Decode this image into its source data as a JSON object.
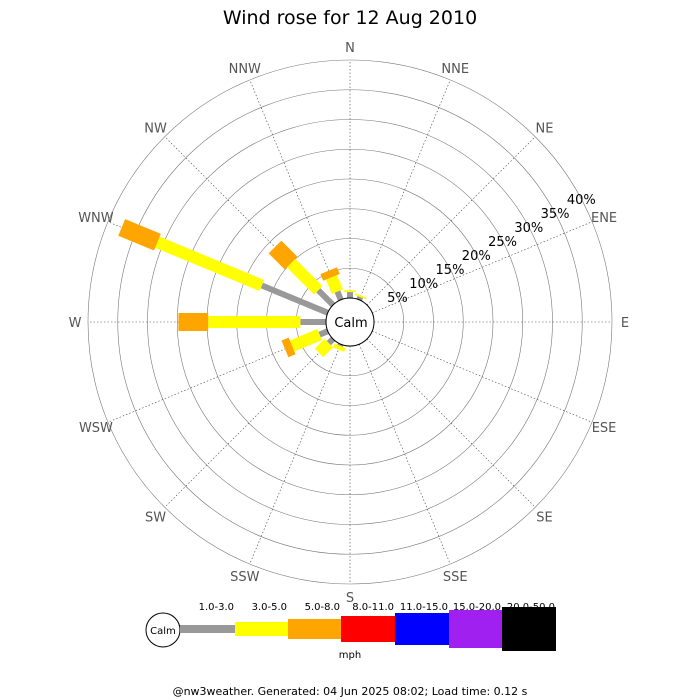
{
  "chart_data": {
    "type": "wind-rose",
    "title": "Wind rose for 12 Aug 2010",
    "directions": [
      "N",
      "NNE",
      "NE",
      "ENE",
      "E",
      "ESE",
      "SE",
      "SSE",
      "S",
      "SSW",
      "SW",
      "WSW",
      "W",
      "WNW",
      "NW",
      "NNW"
    ],
    "ring_labels": [
      "5%",
      "10%",
      "15%",
      "20%",
      "25%",
      "30%",
      "35%",
      "40%"
    ],
    "ring_values": [
      5,
      10,
      15,
      20,
      25,
      30,
      35,
      40
    ],
    "radial_max": 40,
    "calm_label": "Calm",
    "unit": "mph",
    "speed_bins": [
      {
        "label": "1.0-3.0",
        "color": "#999999"
      },
      {
        "label": "3.0-5.0",
        "color": "#ffff00"
      },
      {
        "label": "5.0-8.0",
        "color": "#ffa500"
      },
      {
        "label": "8.0-11.0",
        "color": "#ff0000"
      },
      {
        "label": "11.0-15.0",
        "color": "#0000ff"
      },
      {
        "label": "15.0-20.0",
        "color": "#a020f0"
      },
      {
        "label": "20.0-50.0",
        "color": "#000000"
      }
    ],
    "series": [
      {
        "direction": "N",
        "values": [
          1.0,
          0.3,
          0,
          0,
          0,
          0,
          0
        ]
      },
      {
        "direction": "NNE",
        "values": [
          0.5,
          0.3,
          0,
          0,
          0,
          0,
          0
        ]
      },
      {
        "direction": "NE",
        "values": [
          0,
          0,
          0,
          0,
          0,
          0,
          0
        ]
      },
      {
        "direction": "ENE",
        "values": [
          0,
          0,
          0,
          0,
          0,
          0,
          0
        ]
      },
      {
        "direction": "E",
        "values": [
          0,
          0,
          0,
          0,
          0,
          0,
          0
        ]
      },
      {
        "direction": "ESE",
        "values": [
          0,
          0,
          0,
          0,
          0,
          0,
          0
        ]
      },
      {
        "direction": "SE",
        "values": [
          0,
          0,
          0,
          0,
          0,
          0,
          0
        ]
      },
      {
        "direction": "SSE",
        "values": [
          0,
          0,
          0,
          0,
          0,
          0,
          0
        ]
      },
      {
        "direction": "S",
        "values": [
          0,
          0,
          0,
          0,
          0,
          0,
          0
        ]
      },
      {
        "direction": "SSW",
        "values": [
          0.3,
          0.7,
          0,
          0,
          0,
          0,
          0
        ]
      },
      {
        "direction": "SW",
        "values": [
          1.0,
          2.3,
          0,
          0,
          0,
          0,
          0
        ]
      },
      {
        "direction": "WSW",
        "values": [
          1.5,
          5.0,
          1.3,
          0,
          0,
          0,
          0
        ]
      },
      {
        "direction": "W",
        "values": [
          4.3,
          15.5,
          5.0,
          0,
          0,
          0,
          0
        ]
      },
      {
        "direction": "WNW",
        "values": [
          12.0,
          19.0,
          6.5,
          0,
          0,
          0,
          0
        ]
      },
      {
        "direction": "NW",
        "values": [
          3.5,
          6.5,
          3.8,
          0,
          0,
          0,
          0
        ]
      },
      {
        "direction": "NNW",
        "values": [
          1.5,
          2.6,
          1.2,
          0,
          0,
          0,
          0
        ]
      }
    ]
  },
  "footer": {
    "text": "@nw3weather. Generated: 04 Jun 2025 08:02; Load time: 0.12 s"
  }
}
